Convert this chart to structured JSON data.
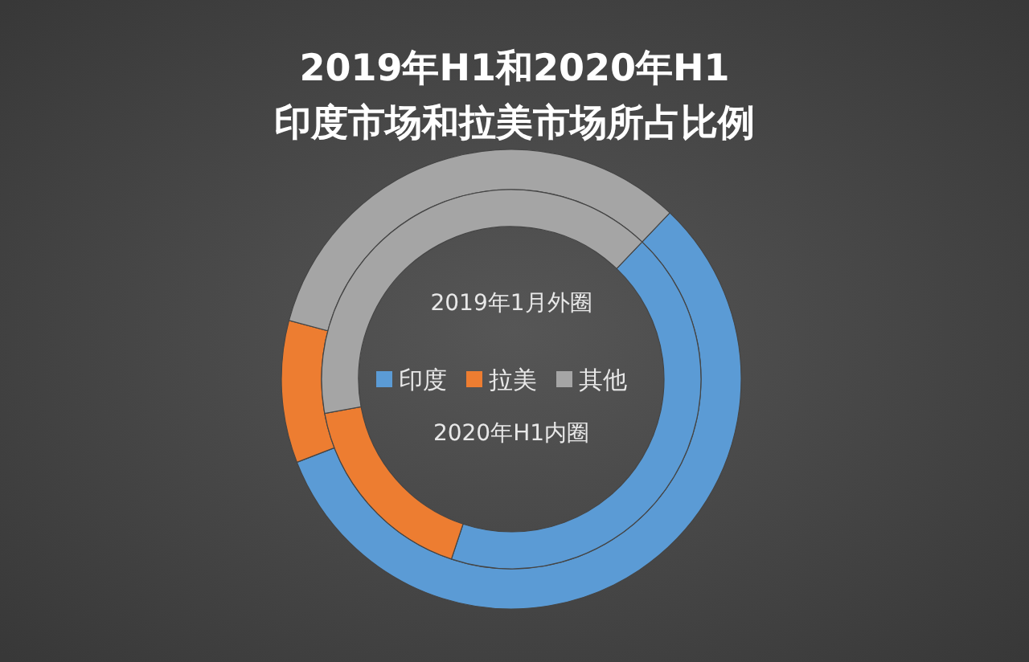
{
  "chart_data": {
    "type": "donut",
    "title": "2019年H1和2020年H1",
    "subtitle": "印度市场和拉美市场所占比例",
    "categories": [
      "印度",
      "拉美",
      "其他"
    ],
    "colors": [
      "#5b9bd5",
      "#ed7d31",
      "#a5a5a5"
    ],
    "series": [
      {
        "values": [
          57,
          10,
          33
        ]
      },
      {
        "values": [
          43,
          17,
          40
        ]
      }
    ],
    "legend": "center",
    "annotations": [
      "2019年1月外圈",
      "2020年H1内圈"
    ]
  }
}
